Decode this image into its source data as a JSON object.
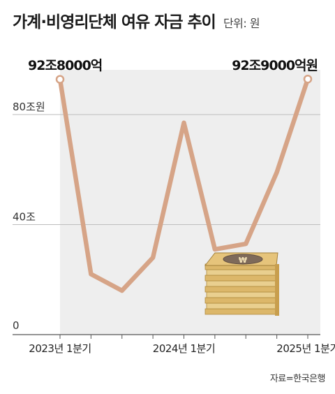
{
  "title": "가계·비영리단체 여유 자금 추이",
  "unit": "단위: 원",
  "source": "자료=한국은행",
  "colors": {
    "line": "#d6a487",
    "plot_bg": "#eeeeee",
    "grid": "#bdbdbd",
    "axis": "#555555"
  },
  "chart_data": {
    "type": "line",
    "title": "가계·비영리단체 여유 자금 추이",
    "ylim": [
      0,
      100
    ],
    "y_ticks": [
      {
        "value": 0,
        "label": "0"
      },
      {
        "value": 40,
        "label": "40조"
      },
      {
        "value": 80,
        "label": "80조원"
      }
    ],
    "x_labels": [
      {
        "index": 0,
        "label": "2023년 1분기"
      },
      {
        "index": 4,
        "label": "2024년 1분기"
      },
      {
        "index": 8,
        "label": "2025년 1분기"
      }
    ],
    "values": [
      92.8,
      22,
      16,
      28,
      77,
      31,
      33,
      59,
      92.9
    ],
    "annotations": [
      {
        "index": 0,
        "label": "92조8000억"
      },
      {
        "index": 8,
        "label": "92조9000억원"
      }
    ],
    "grid": true,
    "icon": "money-stack-icon"
  }
}
